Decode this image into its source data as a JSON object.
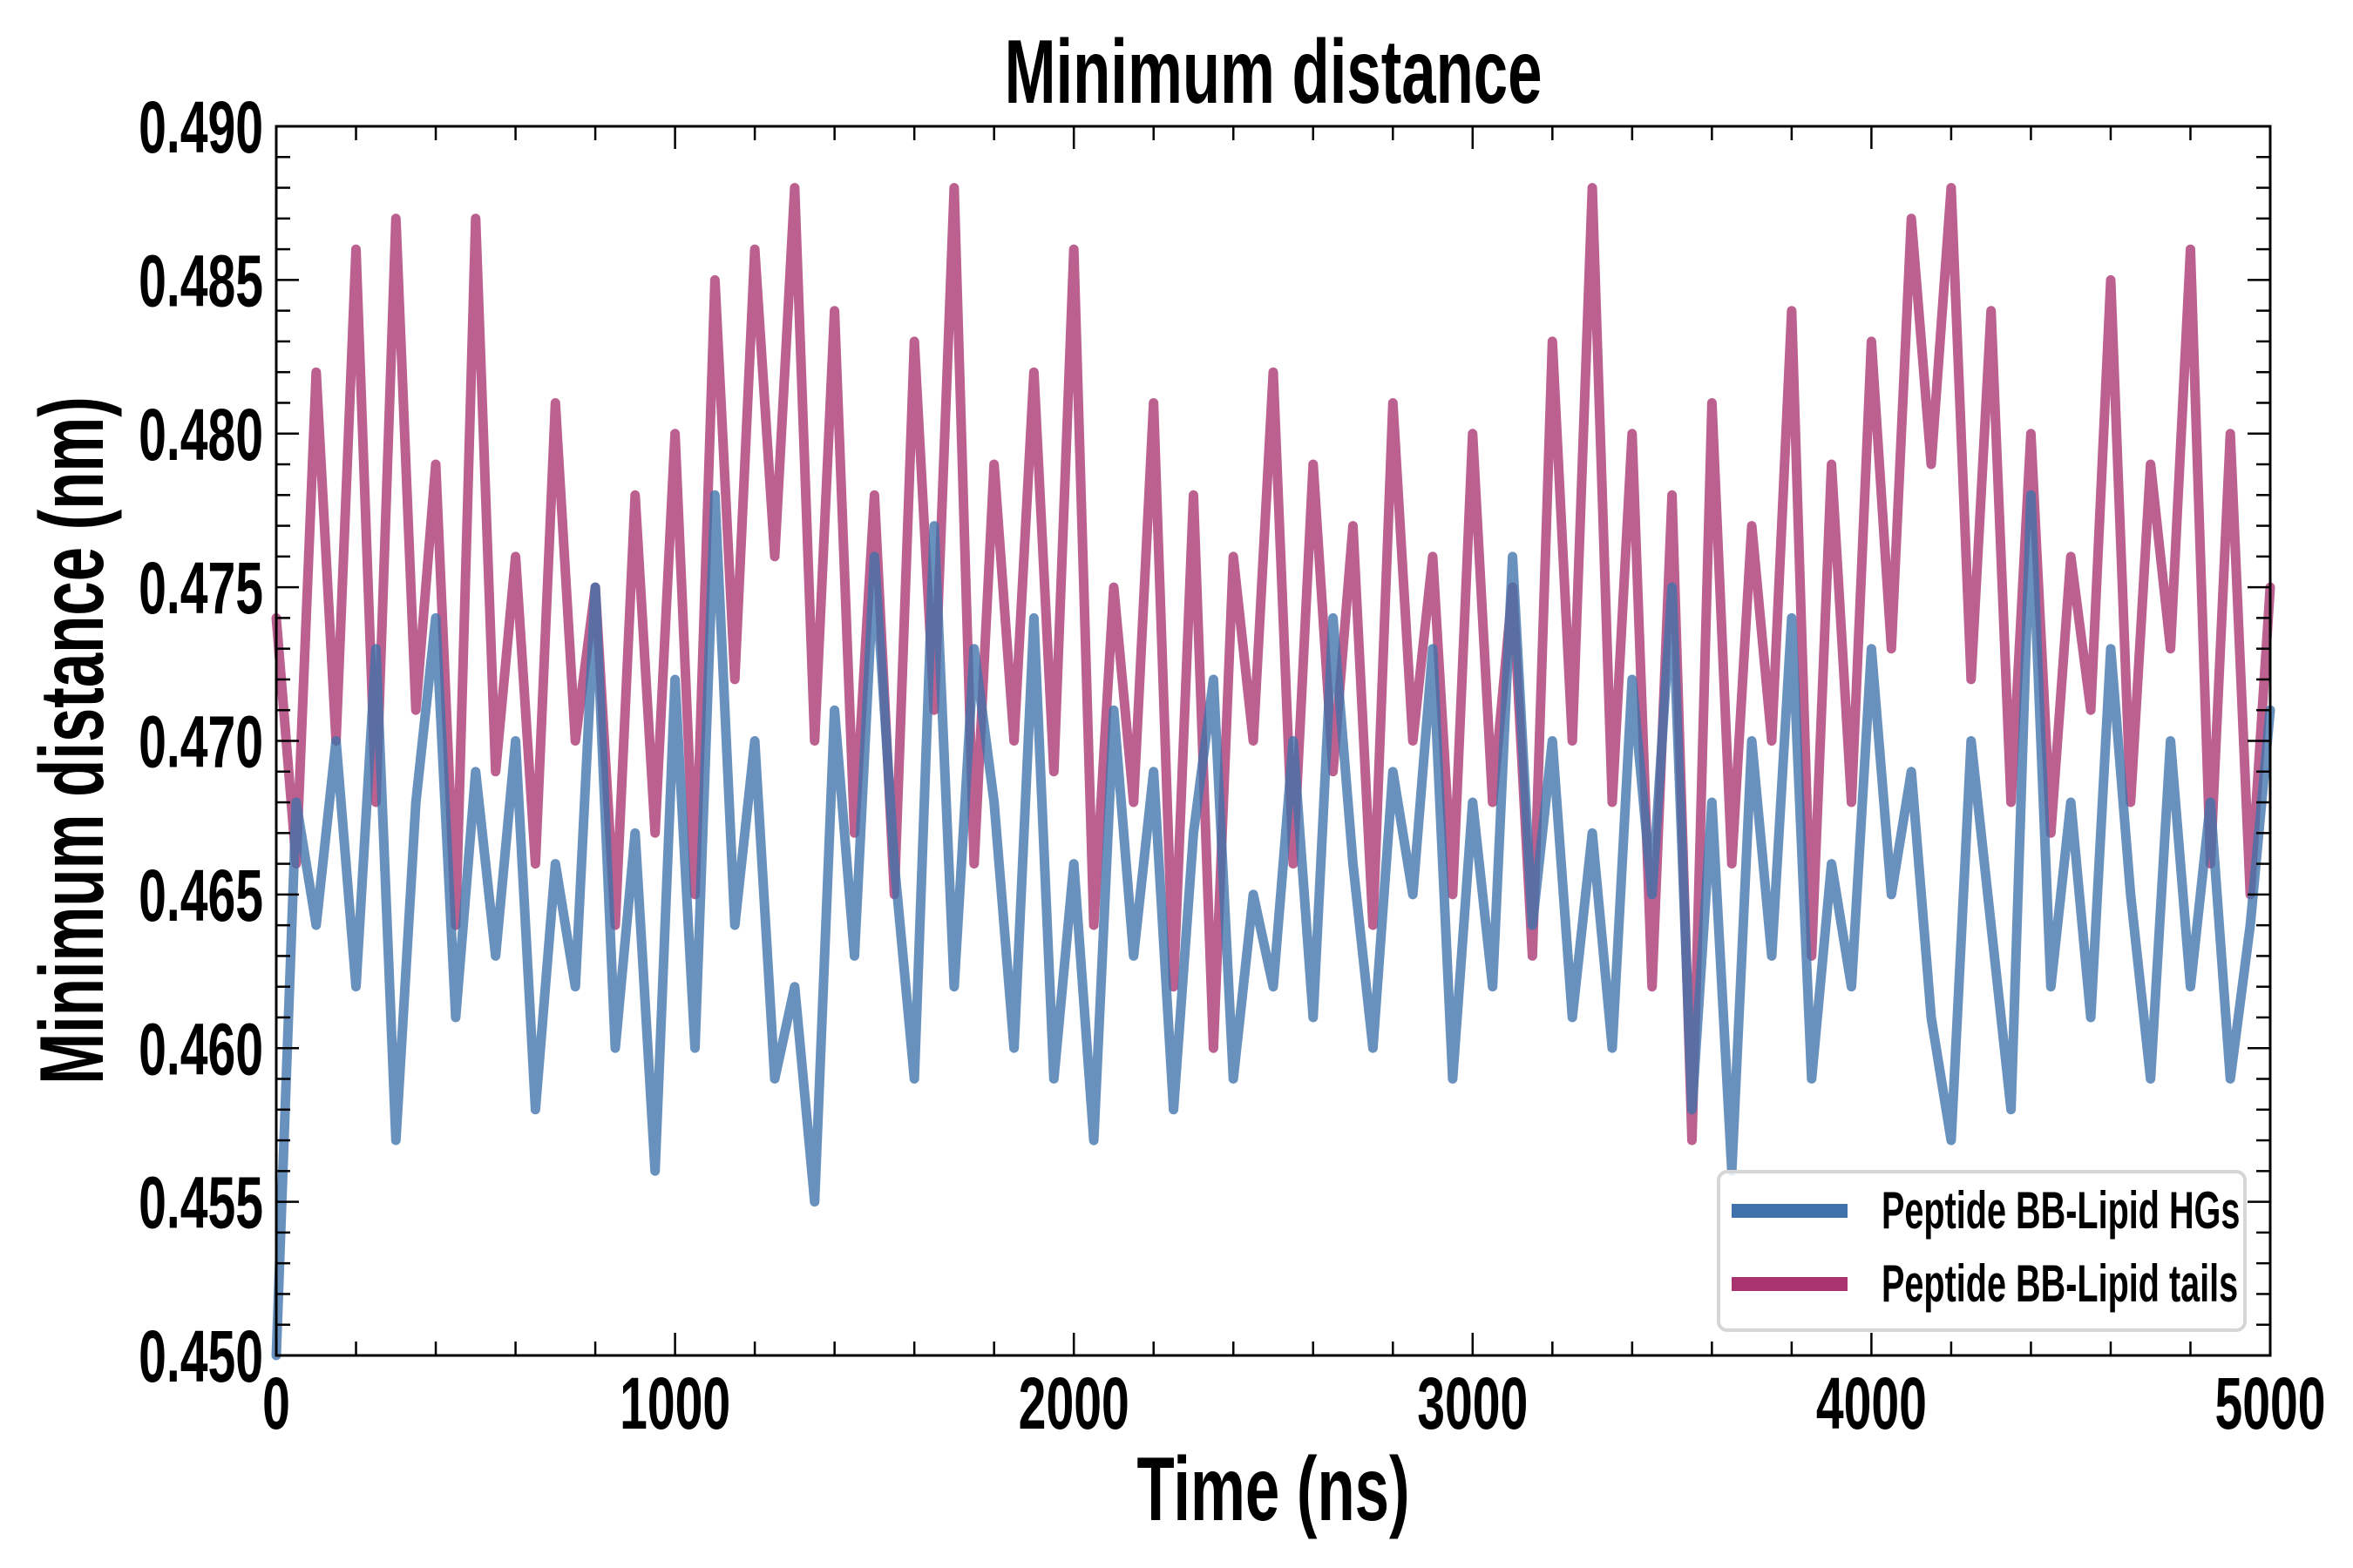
{
  "chart_data": {
    "type": "line",
    "title": "Minimum distance",
    "xlabel": "Time (ns)",
    "ylabel": "Minimum distance (nm)",
    "xlim": [
      0,
      5000
    ],
    "ylim": [
      0.45,
      0.49
    ],
    "x_ticks": [
      "0",
      "1000",
      "2000",
      "3000",
      "4000",
      "5000"
    ],
    "x_tick_values": [
      0,
      1000,
      2000,
      3000,
      4000,
      5000
    ],
    "y_ticks": [
      "0.450",
      "0.455",
      "0.460",
      "0.465",
      "0.470",
      "0.475",
      "0.480",
      "0.485",
      "0.490"
    ],
    "y_tick_values": [
      0.45,
      0.455,
      0.46,
      0.465,
      0.47,
      0.475,
      0.48,
      0.485,
      0.49
    ],
    "grid": false,
    "legend_position": "bottom-right",
    "series": [
      {
        "name": "Peptide BB-Lipid tails",
        "color": "#a8336f",
        "values": [
          0.474,
          0.466,
          0.482,
          0.47,
          0.486,
          0.468,
          0.487,
          0.471,
          0.479,
          0.464,
          0.487,
          0.469,
          0.476,
          0.466,
          0.481,
          0.47,
          0.475,
          0.464,
          0.478,
          0.467,
          0.48,
          0.465,
          0.485,
          0.472,
          0.486,
          0.476,
          0.488,
          0.47,
          0.484,
          0.467,
          0.478,
          0.465,
          0.483,
          0.471,
          0.488,
          0.466,
          0.479,
          0.47,
          0.482,
          0.469,
          0.486,
          0.464,
          0.475,
          0.468,
          0.481,
          0.462,
          0.478,
          0.46,
          0.476,
          0.47,
          0.482,
          0.466,
          0.479,
          0.469,
          0.477,
          0.464,
          0.481,
          0.47,
          0.476,
          0.465,
          0.48,
          0.468,
          0.475,
          0.463,
          0.483,
          0.47,
          0.488,
          0.468,
          0.48,
          0.462,
          0.478,
          0.457,
          0.481,
          0.466,
          0.477,
          0.47,
          0.484,
          0.463,
          0.479,
          0.468,
          0.483,
          0.473,
          0.487,
          0.479,
          0.488,
          0.472,
          0.484,
          0.468,
          0.48,
          0.467,
          0.476,
          0.471,
          0.485,
          0.468,
          0.479,
          0.473,
          0.486,
          0.466,
          0.48,
          0.465,
          0.475
        ]
      },
      {
        "name": "Peptide BB-Lipid HGs",
        "color": "#3f72aa",
        "values": [
          0.45,
          0.468,
          0.464,
          0.47,
          0.462,
          0.473,
          0.457,
          0.468,
          0.474,
          0.461,
          0.469,
          0.463,
          0.47,
          0.458,
          0.466,
          0.462,
          0.475,
          0.46,
          0.467,
          0.456,
          0.472,
          0.46,
          0.478,
          0.464,
          0.47,
          0.459,
          0.462,
          0.455,
          0.471,
          0.463,
          0.476,
          0.466,
          0.459,
          0.477,
          0.462,
          0.473,
          0.468,
          0.46,
          0.474,
          0.459,
          0.466,
          0.457,
          0.471,
          0.463,
          0.469,
          0.458,
          0.467,
          0.472,
          0.459,
          0.465,
          0.462,
          0.47,
          0.461,
          0.474,
          0.466,
          0.46,
          0.469,
          0.465,
          0.473,
          0.459,
          0.468,
          0.462,
          0.476,
          0.464,
          0.47,
          0.461,
          0.467,
          0.46,
          0.472,
          0.465,
          0.475,
          0.458,
          0.468,
          0.456,
          0.47,
          0.463,
          0.474,
          0.459,
          0.466,
          0.462,
          0.473,
          0.465,
          0.469,
          0.461,
          0.457,
          0.47,
          0.464,
          0.458,
          0.478,
          0.462,
          0.468,
          0.461,
          0.473,
          0.465,
          0.459,
          0.47,
          0.462,
          0.468,
          0.459,
          0.464,
          0.471
        ]
      }
    ]
  }
}
